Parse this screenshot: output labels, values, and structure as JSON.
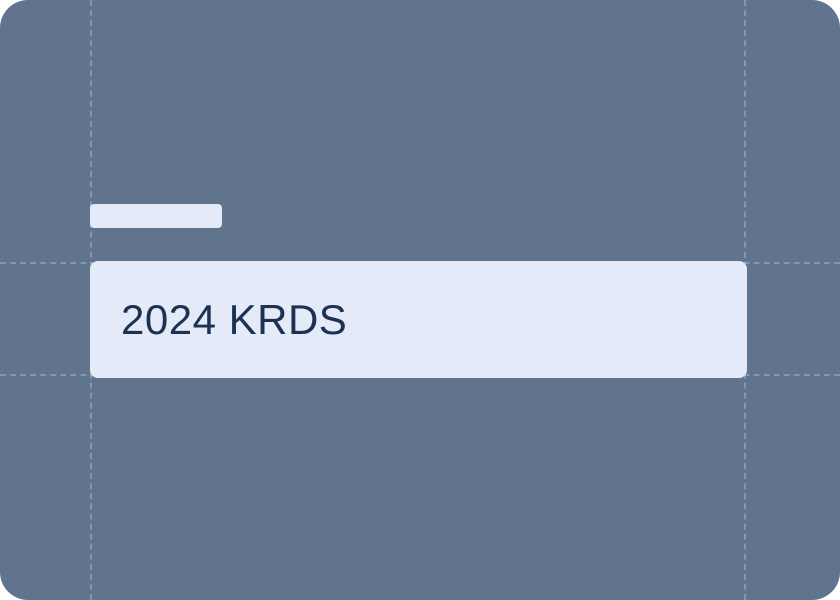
{
  "input": {
    "value": "2024 KRDS"
  },
  "colors": {
    "background": "#61748e",
    "field_fill": "#e4eaf8",
    "text": "#1d3152",
    "guide": "#b4c2d6"
  }
}
